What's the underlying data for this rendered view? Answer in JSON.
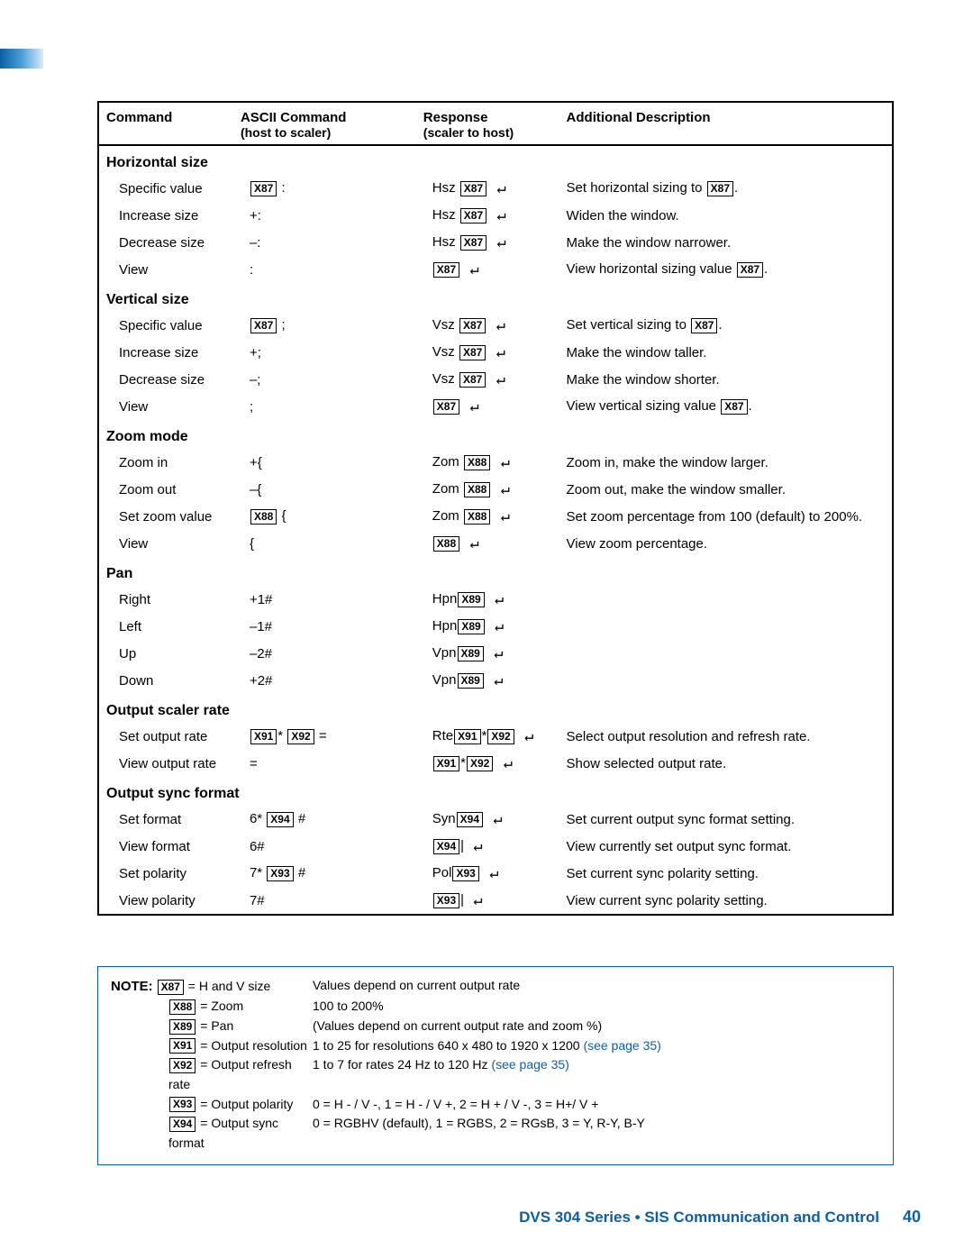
{
  "headers": {
    "command": "Command",
    "ascii": "ASCII Command",
    "ascii_sub": "(host to scaler)",
    "response": "Response",
    "response_sub": "(scaler to host)",
    "desc": "Additional Description"
  },
  "vars": {
    "x87": "X87",
    "x88": "X88",
    "x89": "X89",
    "x91": "X91",
    "x92": "X92",
    "x93": "X93",
    "x94": "X94"
  },
  "sections": [
    {
      "title": "Horizontal size",
      "rows": [
        {
          "cmd": "Specific value",
          "ascii_pre": "",
          "ascii_var": "x87",
          "ascii_post": " :",
          "resp_pre": "Hsz ",
          "resp_vars": [
            "x87"
          ],
          "resp_sep": "",
          "desc_pre": "Set horizontal sizing to ",
          "desc_var": "x87",
          "desc_post": "."
        },
        {
          "cmd": "Increase size",
          "ascii_text": "+:",
          "resp_pre": "Hsz ",
          "resp_vars": [
            "x87"
          ],
          "desc_text": "Widen the window."
        },
        {
          "cmd": "Decrease size",
          "ascii_text": "–:",
          "resp_pre": "Hsz ",
          "resp_vars": [
            "x87"
          ],
          "desc_text": "Make the window narrower."
        },
        {
          "cmd": "View",
          "ascii_text": ":",
          "resp_pre": "",
          "resp_vars": [
            "x87"
          ],
          "desc_pre": "View horizontal sizing value ",
          "desc_var": "x87",
          "desc_post": "."
        }
      ]
    },
    {
      "title": "Vertical size",
      "rows": [
        {
          "cmd": "Specific value",
          "ascii_pre": "",
          "ascii_var": "x87",
          "ascii_post": " ;",
          "resp_pre": "Vsz ",
          "resp_vars": [
            "x87"
          ],
          "desc_pre": "Set vertical sizing to ",
          "desc_var": "x87",
          "desc_post": "."
        },
        {
          "cmd": "Increase size",
          "ascii_text": "+;",
          "resp_pre": "Vsz ",
          "resp_vars": [
            "x87"
          ],
          "desc_text": "Make the window taller."
        },
        {
          "cmd": "Decrease size",
          "ascii_text": "–;",
          "resp_pre": "Vsz ",
          "resp_vars": [
            "x87"
          ],
          "desc_text": "Make the window shorter."
        },
        {
          "cmd": "View",
          "ascii_text": ";",
          "resp_pre": "",
          "resp_vars": [
            "x87"
          ],
          "desc_pre": "View vertical sizing value ",
          "desc_var": "x87",
          "desc_post": "."
        }
      ]
    },
    {
      "title": "Zoom mode",
      "rows": [
        {
          "cmd": "Zoom in",
          "ascii_text": "+{",
          "resp_pre": "Zom ",
          "resp_vars": [
            "x88"
          ],
          "desc_text": "Zoom in, make the window larger."
        },
        {
          "cmd": "Zoom out",
          "ascii_text": "–{",
          "resp_pre": "Zom ",
          "resp_vars": [
            "x88"
          ],
          "desc_text": "Zoom out, make the window smaller."
        },
        {
          "cmd": "Set zoom value",
          "ascii_pre": "",
          "ascii_var": "x88",
          "ascii_post": " {",
          "resp_pre": "Zom ",
          "resp_vars": [
            "x88"
          ],
          "desc_text": "Set zoom percentage from 100 (default) to 200%."
        },
        {
          "cmd": "View",
          "ascii_text": "{",
          "resp_pre": "",
          "resp_vars": [
            "x88"
          ],
          "desc_text": "View zoom percentage."
        }
      ]
    },
    {
      "title": "Pan",
      "rows": [
        {
          "cmd": "Right",
          "ascii_text": "+1#",
          "resp_pre": "Hpn",
          "resp_vars": [
            "x89"
          ],
          "desc_text": ""
        },
        {
          "cmd": "Left",
          "ascii_text": "–1#",
          "resp_pre": "Hpn",
          "resp_vars": [
            "x89"
          ],
          "desc_text": ""
        },
        {
          "cmd": "Up",
          "ascii_text": "–2#",
          "resp_pre": "Vpn",
          "resp_vars": [
            "x89"
          ],
          "desc_text": ""
        },
        {
          "cmd": "Down",
          "ascii_text": "+2#",
          "resp_pre": "Vpn",
          "resp_vars": [
            "x89"
          ],
          "desc_text": ""
        }
      ]
    },
    {
      "title": "Output scaler rate",
      "rows": [
        {
          "cmd": "Set output rate",
          "ascii_pre": "",
          "ascii_vars": [
            "x91",
            "x92"
          ],
          "ascii_sep": "* ",
          "ascii_post": " =",
          "resp_pre": "Rte",
          "resp_vars": [
            "x91",
            "x92"
          ],
          "resp_sep": "*",
          "desc_text": "Select output resolution and refresh rate."
        },
        {
          "cmd": "View output rate",
          "ascii_text": "=",
          "resp_pre": "",
          "resp_vars": [
            "x91",
            "x92"
          ],
          "resp_sep": "*",
          "desc_text": "Show selected output rate."
        }
      ]
    },
    {
      "title": "Output sync format",
      "rows": [
        {
          "cmd": "Set format",
          "ascii_pre": "6* ",
          "ascii_var": "x94",
          "ascii_post": " #",
          "resp_pre": "Syn",
          "resp_vars": [
            "x94"
          ],
          "desc_text": "Set current output sync format setting."
        },
        {
          "cmd": "View format",
          "ascii_text": "6#",
          "resp_pre": "",
          "resp_vars": [
            "x94"
          ],
          "resp_post": "|",
          "desc_text": "View currently set output sync format."
        },
        {
          "cmd": "Set polarity",
          "ascii_pre": "7* ",
          "ascii_var": "x93",
          "ascii_post": " #",
          "resp_pre": "Pol",
          "resp_vars": [
            "x93"
          ],
          "desc_text": "Set current sync polarity setting."
        },
        {
          "cmd": "View polarity",
          "ascii_text": "7#",
          "resp_pre": "",
          "resp_vars": [
            "x93"
          ],
          "resp_post": "|",
          "desc_text": "View current sync polarity setting."
        }
      ]
    }
  ],
  "note": {
    "label": "NOTE:",
    "lines": [
      {
        "var": "x87",
        "def": " = H and V size",
        "val": "Values depend on current output rate"
      },
      {
        "var": "x88",
        "def": " = Zoom",
        "val": "100 to 200%"
      },
      {
        "var": "x89",
        "def": " = Pan",
        "val": "(Values depend on current output rate and zoom %)"
      },
      {
        "var": "x91",
        "def": " = Output resolution",
        "val": "1 to 25 for resolutions 640 x 480 to 1920 x 1200 ",
        "see": "(see page 35)"
      },
      {
        "var": "x92",
        "def": " = Output refresh rate",
        "val": "1 to 7 for rates 24 Hz to 120 Hz ",
        "see": "(see page 35)"
      },
      {
        "var": "x93",
        "def": " = Output polarity",
        "val": "0 = H - / V -, 1 = H - / V +, 2 = H + / V -, 3 = H+/ V +"
      },
      {
        "var": "x94",
        "def": " = Output sync format",
        "val": "0 = RGBHV (default), 1 = RGBS, 2 = RGsB, 3 = Y, R-Y, B-Y"
      }
    ]
  },
  "footer": {
    "title": "DVS 304 Series • SIS Communication and Control",
    "page": "40"
  },
  "colors": {
    "brand": "#0b5fa5",
    "text": "#000000",
    "background": "#ffffff"
  }
}
